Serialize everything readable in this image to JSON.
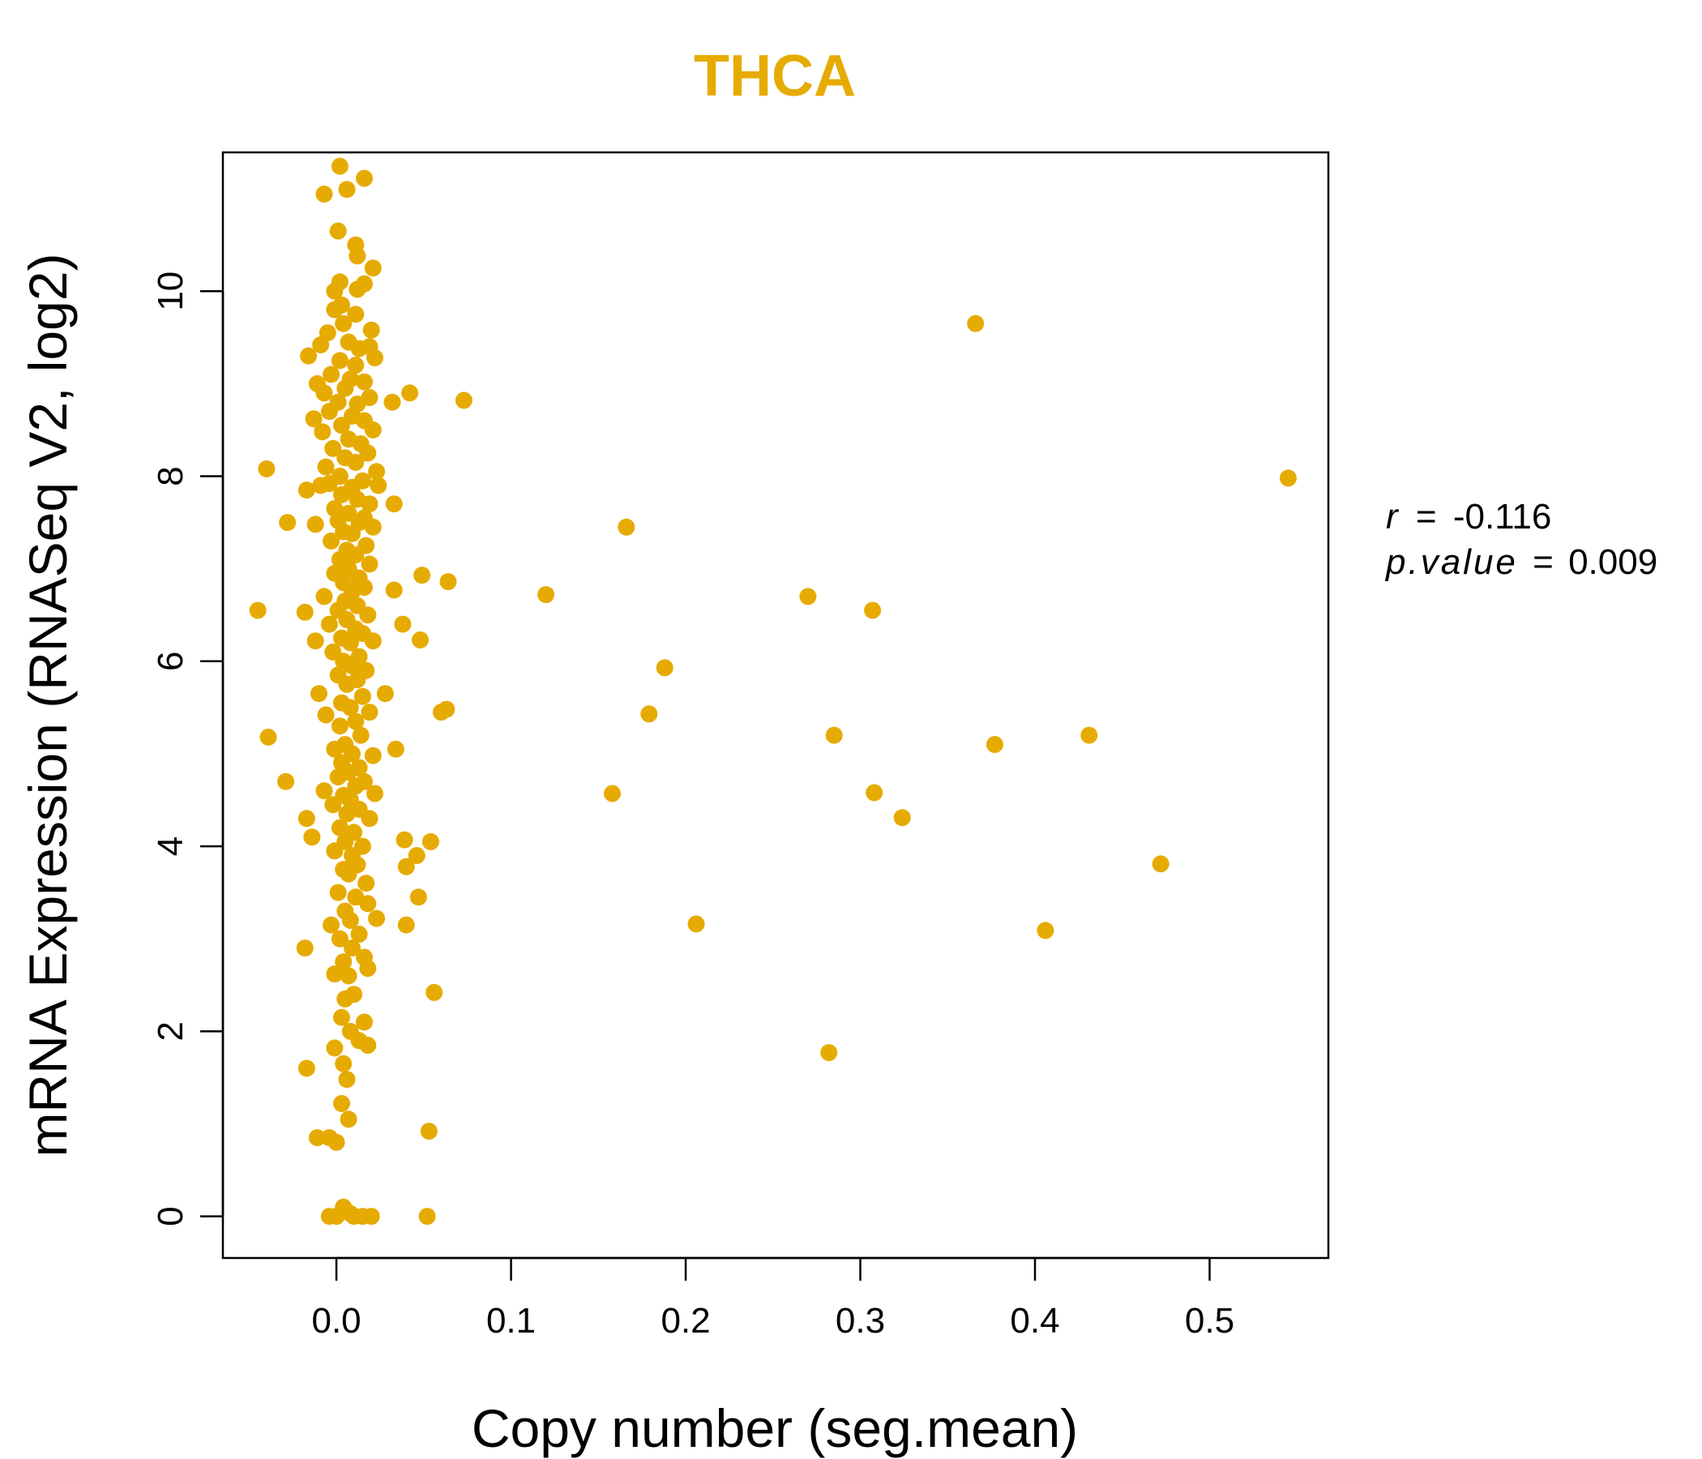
{
  "chart_data": {
    "type": "scatter",
    "title": "THCA",
    "xlabel": "Copy number (seg.mean)",
    "ylabel": "mRNA Expression (RNASeq V2, log2)",
    "xlim": [
      -0.065,
      0.568
    ],
    "ylim": [
      -0.45,
      11.5
    ],
    "x_ticks": [
      0.0,
      0.1,
      0.2,
      0.3,
      0.4,
      0.5
    ],
    "x_tick_labels": [
      "0.0",
      "0.1",
      "0.2",
      "0.3",
      "0.4",
      "0.5"
    ],
    "y_ticks": [
      0,
      2,
      4,
      6,
      8,
      10
    ],
    "y_tick_labels": [
      "0",
      "2",
      "4",
      "6",
      "8",
      "10"
    ],
    "grid": false,
    "point_color": "#E6AB02",
    "stats": {
      "r_label": "r",
      "r_value": "-0.116",
      "p_label": "p.value",
      "p_value": "0.009",
      "equals": "="
    },
    "points": [
      [
        0.002,
        11.35
      ],
      [
        -0.007,
        11.05
      ],
      [
        0.006,
        11.1
      ],
      [
        0.016,
        11.22
      ],
      [
        0.001,
        10.65
      ],
      [
        0.011,
        10.5
      ],
      [
        0.012,
        10.38
      ],
      [
        0.021,
        10.25
      ],
      [
        0.002,
        10.1
      ],
      [
        0.016,
        10.08
      ],
      [
        0.012,
        10.02
      ],
      [
        -0.001,
        10.0
      ],
      [
        0.003,
        9.85
      ],
      [
        -0.001,
        9.8
      ],
      [
        0.011,
        9.75
      ],
      [
        0.004,
        9.65
      ],
      [
        0.02,
        9.58
      ],
      [
        -0.005,
        9.55
      ],
      [
        0.007,
        9.45
      ],
      [
        -0.009,
        9.42
      ],
      [
        0.013,
        9.38
      ],
      [
        0.019,
        9.4
      ],
      [
        -0.016,
        9.3
      ],
      [
        0.022,
        9.28
      ],
      [
        0.002,
        9.25
      ],
      [
        0.011,
        9.2
      ],
      [
        -0.003,
        9.1
      ],
      [
        0.008,
        9.05
      ],
      [
        -0.011,
        9.0
      ],
      [
        0.016,
        9.02
      ],
      [
        0.005,
        8.95
      ],
      [
        -0.007,
        8.9
      ],
      [
        0.019,
        8.85
      ],
      [
        0.001,
        8.8
      ],
      [
        0.012,
        8.78
      ],
      [
        -0.004,
        8.7
      ],
      [
        0.009,
        8.65
      ],
      [
        0.016,
        8.6
      ],
      [
        -0.013,
        8.62
      ],
      [
        0.003,
        8.55
      ],
      [
        0.021,
        8.5
      ],
      [
        -0.008,
        8.48
      ],
      [
        0.007,
        8.4
      ],
      [
        0.014,
        8.35
      ],
      [
        -0.002,
        8.3
      ],
      [
        0.018,
        8.25
      ],
      [
        0.005,
        8.2
      ],
      [
        0.011,
        8.15
      ],
      [
        -0.006,
        8.1
      ],
      [
        0.023,
        8.05
      ],
      [
        0.002,
        8.0
      ],
      [
        0.015,
        7.95
      ],
      [
        -0.004,
        7.92
      ],
      [
        0.009,
        7.88
      ],
      [
        0.024,
        7.9
      ],
      [
        -0.009,
        7.9
      ],
      [
        -0.017,
        7.85
      ],
      [
        0.003,
        7.8
      ],
      [
        0.012,
        7.75
      ],
      [
        0.019,
        7.7
      ],
      [
        -0.001,
        7.65
      ],
      [
        0.007,
        7.6
      ],
      [
        0.016,
        7.55
      ],
      [
        0.001,
        7.52
      ],
      [
        0.013,
        7.5
      ],
      [
        -0.012,
        7.48
      ],
      [
        0.021,
        7.45
      ],
      [
        0.004,
        7.4
      ],
      [
        0.009,
        7.38
      ],
      [
        -0.003,
        7.3
      ],
      [
        0.017,
        7.25
      ],
      [
        0.006,
        7.2
      ],
      [
        0.011,
        7.15
      ],
      [
        0.002,
        7.1
      ],
      [
        0.019,
        7.05
      ],
      [
        0.007,
        7.0
      ],
      [
        -0.001,
        6.95
      ],
      [
        0.013,
        6.9
      ],
      [
        0.004,
        6.85
      ],
      [
        0.016,
        6.8
      ],
      [
        0.009,
        6.75
      ],
      [
        -0.007,
        6.7
      ],
      [
        0.005,
        6.65
      ],
      [
        0.012,
        6.6
      ],
      [
        0.001,
        6.55
      ],
      [
        0.018,
        6.5
      ],
      [
        0.006,
        6.45
      ],
      [
        -0.004,
        6.4
      ],
      [
        0.011,
        6.35
      ],
      [
        0.015,
        6.3
      ],
      [
        0.003,
        6.25
      ],
      [
        0.008,
        6.2
      ],
      [
        0.021,
        6.22
      ],
      [
        -0.002,
        6.1
      ],
      [
        0.013,
        6.05
      ],
      [
        0.004,
        6.0
      ],
      [
        0.009,
        5.95
      ],
      [
        0.017,
        5.9
      ],
      [
        0.001,
        5.85
      ],
      [
        0.012,
        5.8
      ],
      [
        0.006,
        5.75
      ],
      [
        -0.01,
        5.65
      ],
      [
        0.015,
        5.62
      ],
      [
        0.003,
        5.55
      ],
      [
        0.008,
        5.5
      ],
      [
        0.019,
        5.45
      ],
      [
        -0.006,
        5.42
      ],
      [
        0.011,
        5.35
      ],
      [
        0.002,
        5.3
      ],
      [
        0.014,
        5.2
      ],
      [
        0.005,
        5.1
      ],
      [
        -0.001,
        5.05
      ],
      [
        0.009,
        5.0
      ],
      [
        0.021,
        4.98
      ],
      [
        0.003,
        4.9
      ],
      [
        0.013,
        4.85
      ],
      [
        0.007,
        4.8
      ],
      [
        0.001,
        4.75
      ],
      [
        0.016,
        4.7
      ],
      [
        0.011,
        4.65
      ],
      [
        -0.007,
        4.6
      ],
      [
        0.004,
        4.55
      ],
      [
        0.022,
        4.57
      ],
      [
        0.008,
        4.5
      ],
      [
        -0.002,
        4.45
      ],
      [
        0.013,
        4.4
      ],
      [
        0.006,
        4.35
      ],
      [
        0.019,
        4.3
      ],
      [
        0.002,
        4.2
      ],
      [
        0.01,
        4.15
      ],
      [
        0.005,
        4.05
      ],
      [
        0.015,
        4.0
      ],
      [
        -0.001,
        3.95
      ],
      [
        0.009,
        3.9
      ],
      [
        0.012,
        3.8
      ],
      [
        0.004,
        3.75
      ],
      [
        0.007,
        3.7
      ],
      [
        0.017,
        3.6
      ],
      [
        0.001,
        3.5
      ],
      [
        0.011,
        3.45
      ],
      [
        0.018,
        3.38
      ],
      [
        0.005,
        3.3
      ],
      [
        0.008,
        3.2
      ],
      [
        0.023,
        3.22
      ],
      [
        -0.003,
        3.15
      ],
      [
        0.013,
        3.05
      ],
      [
        0.002,
        3.0
      ],
      [
        0.009,
        2.9
      ],
      [
        0.016,
        2.8
      ],
      [
        0.004,
        2.75
      ],
      [
        0.018,
        2.68
      ],
      [
        0.007,
        2.6
      ],
      [
        -0.001,
        2.62
      ],
      [
        0.01,
        2.4
      ],
      [
        0.005,
        2.35
      ],
      [
        0.016,
        2.1
      ],
      [
        0.003,
        2.15
      ],
      [
        0.008,
        2.0
      ],
      [
        0.013,
        1.9
      ],
      [
        0.018,
        1.85
      ],
      [
        -0.001,
        1.82
      ],
      [
        0.004,
        1.65
      ],
      [
        0.006,
        1.48
      ],
      [
        0.003,
        1.22
      ],
      [
        0.007,
        1.05
      ],
      [
        -0.011,
        0.85
      ],
      [
        -0.004,
        0.85
      ],
      [
        0.0,
        0.8
      ],
      [
        0.004,
        0.1
      ],
      [
        0.008,
        0.03
      ],
      [
        -0.004,
        0.0
      ],
      [
        0.0,
        0.0
      ],
      [
        0.01,
        0.0
      ],
      [
        0.015,
        0.0
      ],
      [
        0.02,
        0.0
      ],
      [
        0.052,
        0.0
      ],
      [
        -0.04,
        8.08
      ],
      [
        -0.028,
        7.5
      ],
      [
        -0.045,
        6.55
      ],
      [
        -0.018,
        6.53
      ],
      [
        -0.012,
        6.22
      ],
      [
        -0.039,
        5.18
      ],
      [
        -0.029,
        4.7
      ],
      [
        -0.017,
        4.3
      ],
      [
        -0.014,
        4.1
      ],
      [
        -0.018,
        2.9
      ],
      [
        -0.017,
        1.6
      ],
      [
        0.032,
        8.8
      ],
      [
        0.042,
        8.9
      ],
      [
        0.073,
        8.82
      ],
      [
        0.033,
        7.7
      ],
      [
        0.049,
        6.93
      ],
      [
        0.033,
        6.77
      ],
      [
        0.064,
        6.86
      ],
      [
        0.038,
        6.4
      ],
      [
        0.048,
        6.23
      ],
      [
        0.028,
        5.65
      ],
      [
        0.063,
        5.48
      ],
      [
        0.06,
        5.45
      ],
      [
        0.034,
        5.05
      ],
      [
        0.046,
        3.9
      ],
      [
        0.054,
        4.05
      ],
      [
        0.039,
        4.07
      ],
      [
        0.04,
        3.78
      ],
      [
        0.047,
        3.45
      ],
      [
        0.04,
        3.15
      ],
      [
        0.056,
        2.42
      ],
      [
        0.053,
        0.92
      ],
      [
        0.12,
        6.72
      ],
      [
        0.166,
        7.45
      ],
      [
        0.158,
        4.57
      ],
      [
        0.188,
        5.93
      ],
      [
        0.179,
        5.43
      ],
      [
        0.206,
        3.16
      ],
      [
        0.27,
        6.7
      ],
      [
        0.285,
        5.2
      ],
      [
        0.282,
        1.77
      ],
      [
        0.307,
        6.55
      ],
      [
        0.308,
        4.58
      ],
      [
        0.324,
        4.31
      ],
      [
        0.366,
        9.65
      ],
      [
        0.377,
        5.1
      ],
      [
        0.406,
        3.09
      ],
      [
        0.431,
        5.2
      ],
      [
        0.472,
        3.81
      ],
      [
        0.545,
        7.98
      ]
    ]
  }
}
